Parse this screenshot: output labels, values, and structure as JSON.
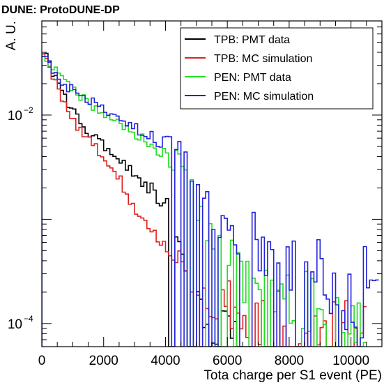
{
  "chart_data": {
    "type": "line",
    "title": "DUNE: ProtoDUNE-DP",
    "xlabel": "Tota charge per S1 event (PE)",
    "ylabel": "A. U.",
    "xlim": [
      0,
      11000
    ],
    "ylim": [
      6e-05,
      0.08
    ],
    "y_scale": "log",
    "grid": false,
    "legend_position": "top-right",
    "x_ticks": [
      0,
      2000,
      4000,
      6000,
      8000,
      10000
    ],
    "x_tick_labels": [
      "0",
      "2000",
      "4000",
      "6000",
      "8000",
      "10000"
    ],
    "y_tick_labels": [
      {
        "base": "10",
        "exp": "−2",
        "value": 0.01
      },
      {
        "base": "10",
        "exp": "−4",
        "value": 0.0001
      }
    ],
    "bin_width": 100,
    "series": [
      {
        "name": "TPB: PMT data",
        "color": "#000000",
        "x": [
          0,
          500,
          1000,
          1500,
          2000,
          2500,
          3000,
          3500,
          4000,
          4200,
          4500,
          5000,
          5100,
          5500,
          6000,
          6500
        ],
        "y": [
          0.045,
          0.02,
          0.011,
          0.007,
          0.005,
          0.0038,
          0.0027,
          0.002,
          0.0015,
          0.0008,
          0.0004,
          0.0002,
          0.00012,
          0.0001,
          9e-05,
          9e-05
        ]
      },
      {
        "name": "TPB: MC simulation",
        "color": "#e02020",
        "x": [
          0,
          500,
          1000,
          1500,
          2000,
          2500,
          3000,
          3500,
          4000,
          5000,
          6000,
          7000,
          8000,
          9000,
          10000,
          10500
        ],
        "y": [
          0.045,
          0.018,
          0.009,
          0.006,
          0.004,
          0.0025,
          0.0012,
          0.0009,
          0.0006,
          0.0002,
          0.00015,
          0.00012,
          0.0001,
          0.0001,
          0.0001,
          0.0001
        ]
      },
      {
        "name": "PEN: PMT data",
        "color": "#22dd22",
        "x": [
          0,
          500,
          1000,
          1500,
          2000,
          2500,
          3000,
          3500,
          4000,
          4500,
          5000,
          5500,
          6000,
          6500,
          7000,
          8000,
          9000,
          10000,
          10500
        ],
        "y": [
          0.04,
          0.025,
          0.018,
          0.013,
          0.01,
          0.008,
          0.0065,
          0.0055,
          0.0045,
          0.003,
          0.0015,
          0.0008,
          0.0005,
          0.0003,
          0.0002,
          0.00015,
          0.00012,
          0.0001,
          0.0001
        ]
      },
      {
        "name": "PEN: MC simulation",
        "color": "#2222dd",
        "x": [
          0,
          500,
          1000,
          1500,
          2000,
          2500,
          3000,
          3500,
          4000,
          4500,
          5000,
          5500,
          6000,
          7000,
          8000,
          9000,
          10000,
          10900
        ],
        "y": [
          0.04,
          0.022,
          0.017,
          0.014,
          0.011,
          0.009,
          0.0075,
          0.0065,
          0.0055,
          0.004,
          0.002,
          0.0012,
          0.0008,
          0.0006,
          0.0004,
          0.0003,
          0.0002,
          0.00015
        ]
      }
    ]
  }
}
